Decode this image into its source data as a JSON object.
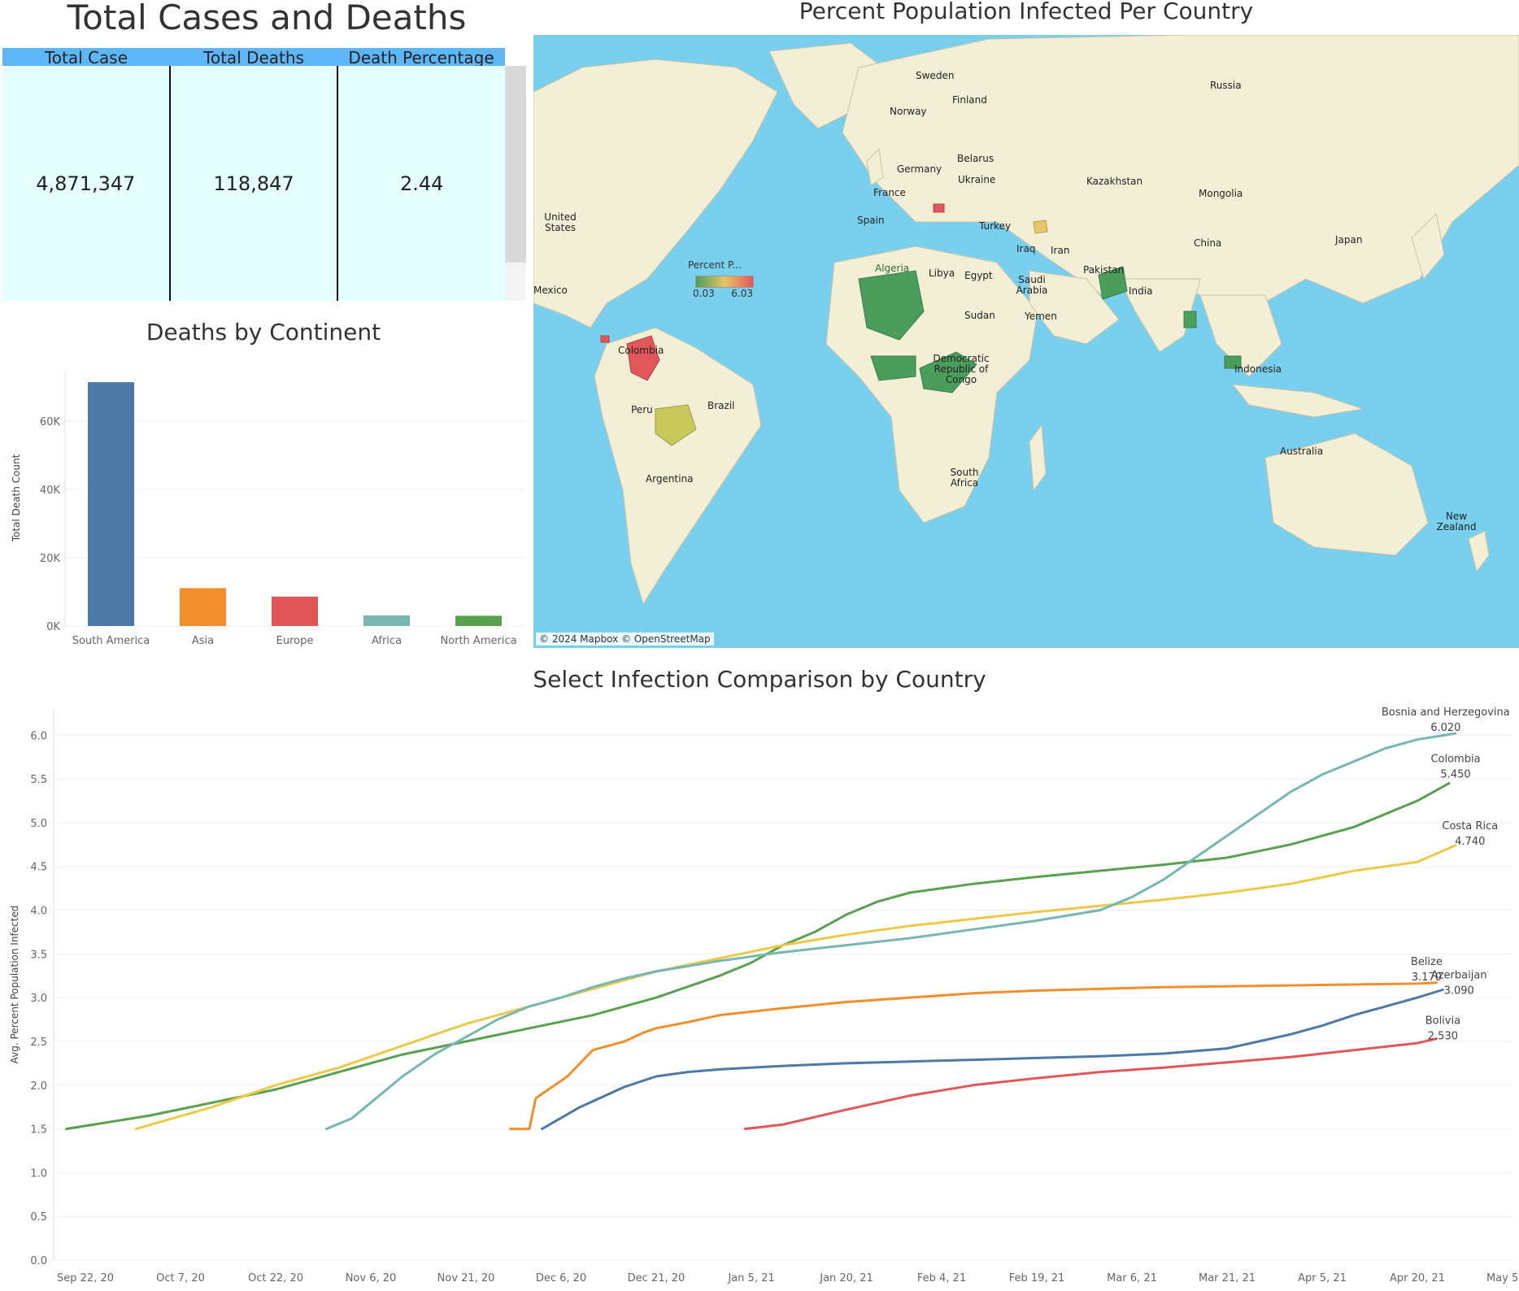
{
  "kpi": {
    "title": "Total Cases and Deaths",
    "headers": [
      "Total Case",
      "Total Deaths",
      "Death Percentage"
    ],
    "values": [
      "4,871,347",
      "118,847",
      "2.44"
    ]
  },
  "map": {
    "title": "Percent Population Infected Per Country",
    "legend": {
      "title": "Percent P...",
      "min": "0.03",
      "max": "6.03",
      "colors": [
        "#4a9d5a",
        "#e8c56a",
        "#e1575a"
      ]
    },
    "credit": "© 2024 Mapbox © OpenStreetMap",
    "labels": [
      "Sweden",
      "Finland",
      "Norway",
      "Russia",
      "Belarus",
      "Germany",
      "Ukraine",
      "Kazakhstan",
      "France",
      "Mongolia",
      "United States",
      "Spain",
      "Turkey",
      "China",
      "Japan",
      "Iraq",
      "Iran",
      "Libya",
      "Egypt",
      "Algeria",
      "Pakistan",
      "Mexico",
      "Saudi Arabia",
      "India",
      "Sudan",
      "Yemen",
      "Colombia",
      "Democratic Republic of Congo",
      "Indonesia",
      "Brazil",
      "Peru",
      "Argentina",
      "South Africa",
      "Australia",
      "New Zealand"
    ]
  },
  "bar_title": "Deaths by Continent",
  "line_title": "Select Infection Comparison by Country",
  "chart_data": [
    {
      "type": "bar",
      "title": "Deaths by Continent",
      "categories": [
        "South America",
        "Asia",
        "Europe",
        "Africa",
        "North America"
      ],
      "values": [
        71400,
        11100,
        8600,
        3100,
        3000
      ],
      "colors": [
        "#4e79a7",
        "#f28e2b",
        "#e15759",
        "#76b7b2",
        "#59a14f"
      ],
      "xlabel": "",
      "ylabel": "Total Death Count",
      "ylim": [
        0,
        75000
      ],
      "yticks": [
        0,
        20000,
        40000,
        60000
      ],
      "ytick_labels": [
        "0K",
        "20K",
        "40K",
        "60K"
      ]
    },
    {
      "type": "line",
      "title": "Select Infection Comparison by Country",
      "ylabel": "Avg. Percent Population Infected",
      "ylim": [
        0,
        6.3
      ],
      "yticks": [
        0.0,
        0.5,
        1.0,
        1.5,
        2.0,
        2.5,
        3.0,
        3.5,
        4.0,
        4.5,
        5.0,
        5.5,
        6.0
      ],
      "ytick_labels": [
        "0.0",
        "0.5",
        "1.0",
        "1.5",
        "2.0",
        "2.5",
        "3.0",
        "3.5",
        "4.0",
        "4.5",
        "5.0",
        "5.5",
        "6.0"
      ],
      "x_range_days": [
        -5,
        225
      ],
      "x_origin": "Sep 22, 20",
      "xticks": [
        0,
        15,
        30,
        45,
        60,
        75,
        90,
        105,
        120,
        135,
        150,
        165,
        180,
        195,
        210,
        225
      ],
      "xtick_labels": [
        "Sep 22, 20",
        "Oct 7, 20",
        "Oct 22, 20",
        "Nov 6, 20",
        "Nov 21, 20",
        "Dec 6, 20",
        "Dec 21, 20",
        "Jan 5, 21",
        "Jan 20, 21",
        "Feb 4, 21",
        "Feb 19, 21",
        "Mar 6, 21",
        "Mar 21, 21",
        "Apr 5, 21",
        "Apr 20, 21",
        "May 5, 21"
      ],
      "series": [
        {
          "name": "Colombia",
          "end_label": "5.450",
          "color": "#59a14f",
          "x": [
            -3,
            10,
            20,
            30,
            40,
            50,
            60,
            70,
            80,
            90,
            100,
            105,
            110,
            115,
            120,
            125,
            130,
            140,
            150,
            160,
            170,
            180,
            190,
            200,
            210,
            215
          ],
          "y": [
            1.5,
            1.65,
            1.8,
            1.95,
            2.15,
            2.35,
            2.5,
            2.65,
            2.8,
            3.0,
            3.25,
            3.4,
            3.6,
            3.75,
            3.95,
            4.1,
            4.2,
            4.3,
            4.38,
            4.45,
            4.52,
            4.6,
            4.75,
            4.95,
            5.25,
            5.45
          ]
        },
        {
          "name": "Costa Rica",
          "end_label": "4.740",
          "color": "#edc948",
          "x": [
            8,
            20,
            30,
            40,
            50,
            60,
            70,
            80,
            90,
            100,
            110,
            120,
            130,
            140,
            150,
            160,
            170,
            180,
            190,
            200,
            210,
            216
          ],
          "y": [
            1.5,
            1.75,
            2.0,
            2.2,
            2.45,
            2.7,
            2.9,
            3.1,
            3.3,
            3.45,
            3.6,
            3.72,
            3.82,
            3.9,
            3.98,
            4.05,
            4.12,
            4.2,
            4.3,
            4.45,
            4.55,
            4.74
          ]
        },
        {
          "name": "Bosnia and Herzegovina",
          "end_label": "6.020",
          "color": "#76b7b2",
          "x": [
            38,
            42,
            45,
            50,
            55,
            60,
            65,
            70,
            75,
            80,
            85,
            90,
            100,
            110,
            120,
            130,
            140,
            150,
            160,
            165,
            170,
            175,
            180,
            185,
            190,
            195,
            200,
            205,
            210,
            216
          ],
          "y": [
            1.5,
            1.62,
            1.8,
            2.1,
            2.35,
            2.55,
            2.75,
            2.9,
            3.0,
            3.12,
            3.22,
            3.3,
            3.42,
            3.52,
            3.6,
            3.68,
            3.78,
            3.88,
            4.0,
            4.15,
            4.35,
            4.6,
            4.85,
            5.1,
            5.35,
            5.55,
            5.7,
            5.85,
            5.95,
            6.02
          ]
        },
        {
          "name": "Belize",
          "end_label": "3.170",
          "color": "#f28e2b",
          "x": [
            67,
            69,
            70,
            71,
            74,
            76,
            80,
            85,
            88,
            90,
            95,
            100,
            110,
            120,
            130,
            140,
            150,
            160,
            170,
            180,
            190,
            200,
            210,
            213
          ],
          "y": [
            1.5,
            1.5,
            1.5,
            1.85,
            2.0,
            2.1,
            2.4,
            2.5,
            2.6,
            2.65,
            2.72,
            2.8,
            2.88,
            2.95,
            3.0,
            3.05,
            3.08,
            3.1,
            3.12,
            3.13,
            3.14,
            3.15,
            3.16,
            3.17
          ]
        },
        {
          "name": "Azerbaijan",
          "end_label": "3.090",
          "color": "#4e79a7",
          "x": [
            72,
            78,
            85,
            90,
            95,
            100,
            110,
            120,
            130,
            140,
            150,
            160,
            170,
            180,
            185,
            190,
            195,
            200,
            205,
            210,
            214
          ],
          "y": [
            1.5,
            1.75,
            1.98,
            2.1,
            2.15,
            2.18,
            2.22,
            2.25,
            2.27,
            2.29,
            2.31,
            2.33,
            2.36,
            2.42,
            2.5,
            2.58,
            2.68,
            2.8,
            2.9,
            3.0,
            3.09
          ]
        },
        {
          "name": "Bolivia",
          "end_label": "2.530",
          "color": "#e15759",
          "x": [
            104,
            110,
            120,
            130,
            140,
            150,
            160,
            170,
            180,
            190,
            200,
            210,
            213
          ],
          "y": [
            1.5,
            1.55,
            1.72,
            1.88,
            2.0,
            2.08,
            2.15,
            2.2,
            2.26,
            2.32,
            2.4,
            2.48,
            2.53
          ]
        }
      ]
    }
  ]
}
